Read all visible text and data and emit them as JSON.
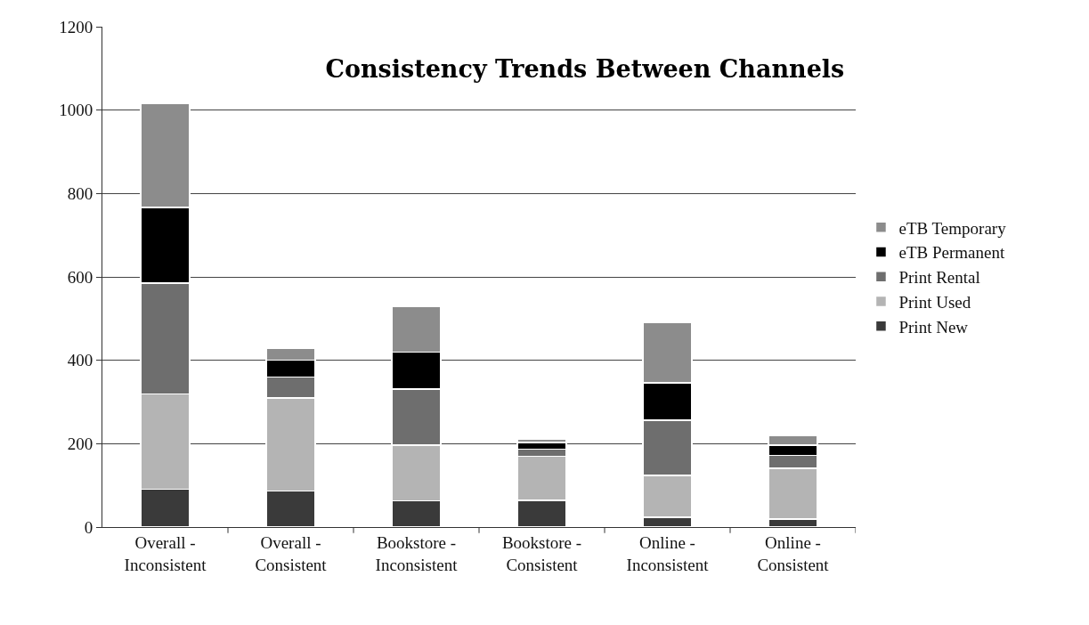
{
  "chart_data": {
    "type": "bar",
    "title": "Consistency Trends Between Channels",
    "stacked": true,
    "categories": [
      "Overall - Inconsistent",
      "Overall - Consistent",
      "Bookstore - Inconsistent",
      "Bookstore - Consistent",
      "Online - Inconsistent",
      "Online - Consistent"
    ],
    "series": [
      {
        "name": "Print New",
        "color": "#3a3a3a",
        "values": [
          91,
          87,
          63,
          64,
          24,
          19
        ]
      },
      {
        "name": "Print Used",
        "color": "#b4b4b4",
        "values": [
          228,
          223,
          133,
          106,
          100,
          122
        ]
      },
      {
        "name": "Print Rental",
        "color": "#6e6e6e",
        "values": [
          266,
          50,
          135,
          17,
          132,
          31
        ]
      },
      {
        "name": "eTB Permanent",
        "color": "#000000",
        "values": [
          182,
          40,
          89,
          16,
          90,
          24
        ]
      },
      {
        "name": "eTB Temporary",
        "color": "#8c8c8c",
        "values": [
          248,
          28,
          108,
          7,
          144,
          24
        ]
      }
    ],
    "ylim": [
      0,
      1200
    ],
    "yticks": [
      0,
      200,
      400,
      600,
      800,
      1000,
      1200
    ],
    "grid": "y",
    "legend": "right"
  }
}
